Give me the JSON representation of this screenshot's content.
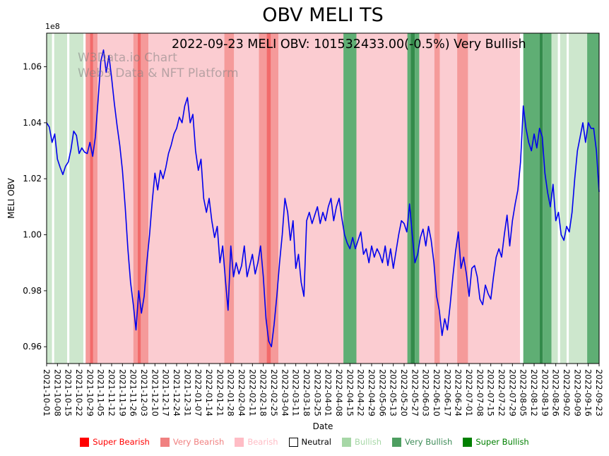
{
  "title": "OBV MELI TS",
  "subtitle": "2022-09-23 MELI OBV: 101532433.00(-0.5%) Very Bullish",
  "watermark": {
    "line1": "W3Data.io Chart",
    "line2": "Web3 Data & NFT Platform"
  },
  "chart_data": {
    "type": "line",
    "title": "OBV MELI TS",
    "xlabel": "Date",
    "ylabel": "MELI OBV",
    "y_offset_label": "1e8",
    "ylim": [
      0.954,
      1.072
    ],
    "yticks": [
      0.96,
      0.98,
      1.0,
      1.02,
      1.04,
      1.06
    ],
    "x_start": "2021-10-01",
    "x_end": "2022-09-23",
    "x_tick_labels": [
      "2021-10-01",
      "2021-10-08",
      "2021-10-15",
      "2021-10-22",
      "2021-10-29",
      "2021-11-05",
      "2021-11-12",
      "2021-11-19",
      "2021-11-26",
      "2021-12-03",
      "2021-12-10",
      "2021-12-17",
      "2021-12-24",
      "2021-12-31",
      "2022-01-07",
      "2022-01-14",
      "2022-01-21",
      "2022-01-28",
      "2022-02-04",
      "2022-02-11",
      "2022-02-18",
      "2022-02-25",
      "2022-03-04",
      "2022-03-11",
      "2022-03-18",
      "2022-03-25",
      "2022-04-01",
      "2022-04-08",
      "2022-04-15",
      "2022-04-22",
      "2022-04-29",
      "2022-05-06",
      "2022-05-13",
      "2022-05-20",
      "2022-05-27",
      "2022-06-03",
      "2022-06-10",
      "2022-06-17",
      "2022-06-24",
      "2022-07-01",
      "2022-07-08",
      "2022-07-15",
      "2022-07-22",
      "2022-07-29",
      "2022-08-05",
      "2022-08-12",
      "2022-08-19",
      "2022-08-26",
      "2022-09-02",
      "2022-09-09",
      "2022-09-16",
      "2022-09-23"
    ],
    "line_color": "#0000ee",
    "points_per_week": 4,
    "series": [
      {
        "name": "MELI OBV",
        "values": [
          1.04,
          1.0385,
          1.033,
          1.036,
          1.027,
          1.024,
          1.0215,
          1.0245,
          1.026,
          1.0305,
          1.037,
          1.0355,
          1.029,
          1.031,
          1.0295,
          1.029,
          1.033,
          1.028,
          1.035,
          1.048,
          1.062,
          1.066,
          1.058,
          1.064,
          1.056,
          1.047,
          1.039,
          1.032,
          1.023,
          1.01,
          0.995,
          0.983,
          0.975,
          0.966,
          0.98,
          0.972,
          0.978,
          0.99,
          1.0,
          1.012,
          1.022,
          1.016,
          1.023,
          1.02,
          1.024,
          1.029,
          1.032,
          1.036,
          1.038,
          1.042,
          1.04,
          1.046,
          1.049,
          1.04,
          1.043,
          1.03,
          1.023,
          1.027,
          1.013,
          1.008,
          1.013,
          1.005,
          0.999,
          1.003,
          0.99,
          0.996,
          0.984,
          0.973,
          0.996,
          0.985,
          0.99,
          0.986,
          0.989,
          0.996,
          0.985,
          0.989,
          0.993,
          0.986,
          0.99,
          0.996,
          0.985,
          0.97,
          0.962,
          0.96,
          0.968,
          0.978,
          0.99,
          1.0,
          1.013,
          1.008,
          0.998,
          1.005,
          0.988,
          0.993,
          0.983,
          0.978,
          1.005,
          1.008,
          1.004,
          1.007,
          1.01,
          1.004,
          1.008,
          1.005,
          1.01,
          1.013,
          1.005,
          1.01,
          1.013,
          1.006,
          1.0,
          0.997,
          0.995,
          0.999,
          0.995,
          0.998,
          1.001,
          0.993,
          0.995,
          0.99,
          0.996,
          0.992,
          0.995,
          0.993,
          0.99,
          0.996,
          0.989,
          0.995,
          0.988,
          0.994,
          1.0,
          1.005,
          1.004,
          1.001,
          1.011,
          1.0,
          0.99,
          0.993,
          0.999,
          1.002,
          0.996,
          1.003,
          0.998,
          0.99,
          0.978,
          0.973,
          0.964,
          0.97,
          0.966,
          0.975,
          0.985,
          0.994,
          1.001,
          0.988,
          0.992,
          0.986,
          0.978,
          0.988,
          0.989,
          0.985,
          0.977,
          0.975,
          0.982,
          0.979,
          0.977,
          0.985,
          0.992,
          0.995,
          0.992,
          1.0,
          1.007,
          0.996,
          1.005,
          1.011,
          1.016,
          1.026,
          1.046,
          1.038,
          1.033,
          1.03,
          1.036,
          1.031,
          1.038,
          1.035,
          1.022,
          1.015,
          1.01,
          1.018,
          1.005,
          1.008,
          1.0,
          0.998,
          1.003,
          1.001,
          1.008,
          1.02,
          1.03,
          1.035,
          1.04,
          1.033,
          1.04,
          1.038,
          1.038,
          1.03,
          1.0153
        ]
      }
    ],
    "band_colors": {
      "super_bearish": "#f26a6a",
      "very_bearish": "#f59a9a",
      "bearish": "#fbccd1",
      "neutral": "#ffffff",
      "bullish": "#cde7cd",
      "very_bullish": "#5fae74",
      "super_bullish": "#338a4a"
    },
    "bands": [
      {
        "start": 0.0,
        "end": 0.5,
        "class": "bullish"
      },
      {
        "start": 0.5,
        "end": 0.7,
        "class": "neutral"
      },
      {
        "start": 0.7,
        "end": 1.9,
        "class": "bullish"
      },
      {
        "start": 1.9,
        "end": 2.1,
        "class": "neutral"
      },
      {
        "start": 2.1,
        "end": 3.4,
        "class": "bullish"
      },
      {
        "start": 3.4,
        "end": 3.6,
        "class": "neutral"
      },
      {
        "start": 3.6,
        "end": 4.0,
        "class": "very_bearish"
      },
      {
        "start": 4.0,
        "end": 4.3,
        "class": "super_bearish"
      },
      {
        "start": 4.3,
        "end": 4.7,
        "class": "very_bearish"
      },
      {
        "start": 4.7,
        "end": 8.0,
        "class": "bearish"
      },
      {
        "start": 8.0,
        "end": 8.4,
        "class": "very_bearish"
      },
      {
        "start": 8.4,
        "end": 8.7,
        "class": "super_bearish"
      },
      {
        "start": 8.7,
        "end": 9.4,
        "class": "very_bearish"
      },
      {
        "start": 9.4,
        "end": 16.4,
        "class": "bearish"
      },
      {
        "start": 16.4,
        "end": 17.3,
        "class": "very_bearish"
      },
      {
        "start": 17.3,
        "end": 19.6,
        "class": "bearish"
      },
      {
        "start": 19.6,
        "end": 20.3,
        "class": "very_bearish"
      },
      {
        "start": 20.3,
        "end": 20.7,
        "class": "super_bearish"
      },
      {
        "start": 20.7,
        "end": 21.4,
        "class": "very_bearish"
      },
      {
        "start": 21.4,
        "end": 27.4,
        "class": "bearish"
      },
      {
        "start": 27.4,
        "end": 28.6,
        "class": "very_bullish"
      },
      {
        "start": 28.6,
        "end": 33.3,
        "class": "bearish"
      },
      {
        "start": 33.3,
        "end": 33.6,
        "class": "very_bullish"
      },
      {
        "start": 33.6,
        "end": 34.0,
        "class": "super_bullish"
      },
      {
        "start": 34.0,
        "end": 34.4,
        "class": "very_bullish"
      },
      {
        "start": 34.4,
        "end": 35.8,
        "class": "bearish"
      },
      {
        "start": 35.8,
        "end": 36.3,
        "class": "very_bearish"
      },
      {
        "start": 36.3,
        "end": 37.9,
        "class": "bearish"
      },
      {
        "start": 37.9,
        "end": 38.9,
        "class": "very_bearish"
      },
      {
        "start": 38.9,
        "end": 43.7,
        "class": "bearish"
      },
      {
        "start": 43.7,
        "end": 44.0,
        "class": "neutral"
      },
      {
        "start": 44.0,
        "end": 45.5,
        "class": "very_bullish"
      },
      {
        "start": 45.5,
        "end": 45.8,
        "class": "super_bullish"
      },
      {
        "start": 45.8,
        "end": 46.6,
        "class": "very_bullish"
      },
      {
        "start": 46.6,
        "end": 47.2,
        "class": "bullish"
      },
      {
        "start": 47.2,
        "end": 47.4,
        "class": "neutral"
      },
      {
        "start": 47.4,
        "end": 48.0,
        "class": "bullish"
      },
      {
        "start": 48.0,
        "end": 48.2,
        "class": "neutral"
      },
      {
        "start": 48.2,
        "end": 49.9,
        "class": "bullish"
      },
      {
        "start": 49.9,
        "end": 51.0,
        "class": "very_bullish"
      }
    ],
    "legend": [
      {
        "label": "Super Bearish",
        "color": "#ff0000",
        "text_color": "#ff0000"
      },
      {
        "label": "Very Bearish",
        "color": "#f08080",
        "text_color": "#f08080"
      },
      {
        "label": "Bearish",
        "color": "#ffbcc5",
        "text_color": "#ffbcc5"
      },
      {
        "label": "Neutral",
        "color": "#ffffff",
        "text_color": "#000000"
      },
      {
        "label": "Bullish",
        "color": "#a6d7a6",
        "text_color": "#a6d7a6"
      },
      {
        "label": "Very Bullish",
        "color": "#4d9e60",
        "text_color": "#3d8b57"
      },
      {
        "label": "Super Bullish",
        "color": "#008000",
        "text_color": "#008000"
      }
    ],
    "legend_position": "bottom-center",
    "grid": false
  }
}
